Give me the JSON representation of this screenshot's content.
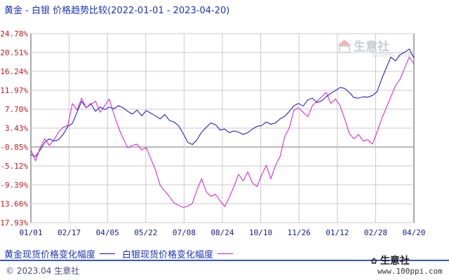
{
  "title": "黄金 - 白银 价格趋势比较(2022-01-01 - 2023-04-20)",
  "watermark": {
    "brand": "生意社",
    "url": "100PPI.COM"
  },
  "legend": {
    "gold_label": "黄金现货价格变化幅度",
    "silver_label": "白银现货价格变化幅度"
  },
  "footer": {
    "text": "© 2023.04 生意社"
  },
  "brand": {
    "name": "生意社",
    "url": "www.100ppi.com"
  },
  "colors": {
    "gold": "#1010c0",
    "silver": "#d21ad2",
    "grid": "#c8c8c8",
    "axis": "#555555"
  },
  "chart_data": {
    "type": "line",
    "title": "黄金 - 白银 价格趋势比较(2022-01-01 - 2023-04-20)",
    "xlabel": "",
    "ylabel": "",
    "x_ticks": [
      "01/01",
      "02/17",
      "04/05",
      "05/22",
      "07/08",
      "08/24",
      "10/10",
      "11/26",
      "01/12",
      "02/28",
      "04/20"
    ],
    "y_ticks": [
      "24.78%",
      "20.51%",
      "16.24%",
      "11.97%",
      "7.70%",
      "3.43%",
      "-0.85%",
      "-5.12%",
      "-9.39%",
      "-13.66%",
      "-17.93%"
    ],
    "ylim": [
      -17.93,
      24.78
    ],
    "grid": true,
    "legend_position": "bottom",
    "series": [
      {
        "name": "黄金现货价格变化幅度",
        "x": [
          "01/01",
          "01/05",
          "01/10",
          "01/15",
          "01/20",
          "01/25",
          "01/30",
          "02/04",
          "02/10",
          "02/17",
          "02/22",
          "02/28",
          "03/04",
          "03/08",
          "03/14",
          "03/20",
          "03/26",
          "04/01",
          "04/05",
          "04/10",
          "04/16",
          "04/22",
          "04/28",
          "05/04",
          "05/10",
          "05/16",
          "05/22",
          "05/28",
          "06/04",
          "06/10",
          "06/16",
          "06/22",
          "06/28",
          "07/04",
          "07/08",
          "07/14",
          "07/20",
          "07/26",
          "08/01",
          "08/07",
          "08/13",
          "08/19",
          "08/24",
          "08/30",
          "09/05",
          "09/11",
          "09/17",
          "09/23",
          "09/29",
          "10/05",
          "10/10",
          "10/16",
          "10/22",
          "10/28",
          "11/03",
          "11/09",
          "11/15",
          "11/21",
          "11/26",
          "12/02",
          "12/08",
          "12/14",
          "12/20",
          "12/26",
          "01/01",
          "01/06",
          "01/12",
          "01/18",
          "01/24",
          "01/30",
          "02/05",
          "02/11",
          "02/17",
          "02/23",
          "02/28",
          "03/06",
          "03/12",
          "03/18",
          "03/24",
          "03/30",
          "04/05",
          "04/10",
          "04/15",
          "04/20"
        ],
        "values": [
          -2.5,
          -3.0,
          -1.5,
          0.2,
          1.0,
          0.5,
          0.8,
          2.0,
          3.8,
          4.5,
          7.0,
          9.5,
          8.0,
          9.0,
          7.2,
          8.2,
          7.6,
          8.2,
          7.8,
          8.5,
          8.0,
          7.2,
          6.6,
          7.5,
          6.2,
          7.4,
          6.8,
          6.2,
          5.5,
          6.5,
          5.2,
          4.8,
          4.0,
          2.2,
          0.2,
          -0.3,
          0.8,
          2.5,
          3.6,
          4.6,
          4.2,
          3.0,
          3.2,
          2.4,
          2.8,
          2.5,
          2.0,
          2.4,
          3.2,
          3.8,
          4.0,
          4.8,
          4.3,
          4.6,
          5.5,
          6.1,
          7.2,
          8.5,
          9.0,
          8.4,
          9.8,
          10.2,
          9.2,
          9.6,
          10.5,
          11.3,
          11.9,
          12.6,
          12.4,
          11.5,
          10.3,
          10.2,
          10.5,
          10.4,
          10.8,
          11.6,
          14.5,
          17.0,
          19.5,
          18.6,
          20.0,
          20.6,
          21.3,
          19.3
        ]
      },
      {
        "name": "白银现货价格变化幅度",
        "x": [
          "01/01",
          "01/05",
          "01/10",
          "01/15",
          "01/20",
          "01/25",
          "01/30",
          "02/04",
          "02/10",
          "02/17",
          "02/22",
          "02/28",
          "03/04",
          "03/08",
          "03/14",
          "03/20",
          "03/26",
          "04/01",
          "04/05",
          "04/10",
          "04/16",
          "04/22",
          "04/28",
          "05/04",
          "05/10",
          "05/16",
          "05/22",
          "05/28",
          "06/04",
          "06/10",
          "06/16",
          "06/22",
          "06/28",
          "07/04",
          "07/08",
          "07/14",
          "07/20",
          "07/26",
          "08/01",
          "08/07",
          "08/13",
          "08/19",
          "08/24",
          "08/30",
          "09/05",
          "09/11",
          "09/17",
          "09/23",
          "09/29",
          "10/05",
          "10/10",
          "10/16",
          "10/22",
          "10/28",
          "11/03",
          "11/09",
          "11/15",
          "11/21",
          "11/26",
          "12/02",
          "12/08",
          "12/14",
          "12/20",
          "12/26",
          "01/01",
          "01/06",
          "01/12",
          "01/18",
          "01/24",
          "01/30",
          "02/05",
          "02/11",
          "02/17",
          "02/23",
          "02/28",
          "03/06",
          "03/12",
          "03/18",
          "03/24",
          "03/30",
          "04/05",
          "04/10",
          "04/15",
          "04/20"
        ],
        "values": [
          -1.5,
          -4.0,
          -1.0,
          1.0,
          -0.5,
          0.8,
          2.5,
          3.6,
          4.0,
          9.0,
          7.5,
          10.2,
          8.0,
          8.8,
          9.5,
          7.0,
          8.5,
          10.0,
          6.5,
          3.5,
          1.0,
          -1.0,
          -0.5,
          -0.2,
          -1.5,
          -1.0,
          -3.5,
          -6.0,
          -9.5,
          -10.8,
          -12.0,
          -13.5,
          -14.0,
          -14.5,
          -14.2,
          -13.6,
          -10.5,
          -8.0,
          -11.0,
          -12.0,
          -11.5,
          -13.0,
          -14.3,
          -12.2,
          -9.8,
          -7.0,
          -8.5,
          -6.5,
          -9.0,
          -9.8,
          -7.2,
          -5.0,
          -8.0,
          -5.0,
          -3.0,
          1.5,
          3.5,
          7.5,
          8.0,
          7.0,
          6.0,
          8.5,
          9.5,
          10.5,
          11.5,
          9.0,
          10.0,
          8.5,
          5.5,
          2.2,
          1.0,
          2.0,
          0.5,
          0.8,
          -0.2,
          2.5,
          5.5,
          8.0,
          10.5,
          13.0,
          14.5,
          17.0,
          19.5,
          18.0
        ]
      }
    ]
  }
}
